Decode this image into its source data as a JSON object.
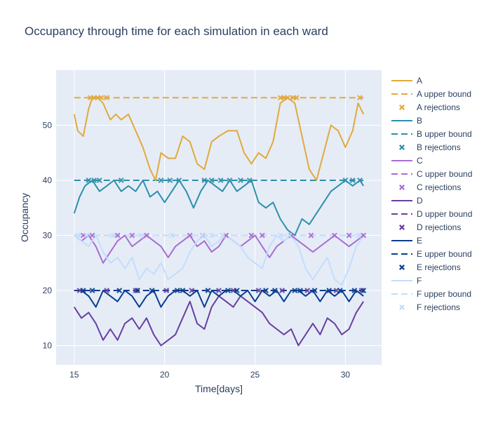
{
  "chart_data": {
    "type": "line",
    "title": "Occupancy through time for each simulation in each ward",
    "xlabel": "Time[days]",
    "ylabel": "Occupancy",
    "xlim": [
      14,
      32
    ],
    "ylim": [
      6.5,
      60
    ],
    "x_ticks": [
      15,
      20,
      25,
      30
    ],
    "y_ticks": [
      10,
      20,
      30,
      40,
      50
    ],
    "grid": true,
    "legend_position": "right",
    "colors": {
      "A": "#e2a93b",
      "B": "#2e8fab",
      "C": "#a86ed2",
      "D": "#6a3ea1",
      "E": "#0a3d8f",
      "F": "#c3ddfd"
    },
    "legend": [
      "A",
      "A upper bound",
      "A rejections",
      "B",
      "B upper bound",
      "B rejections",
      "C",
      "C upper bound",
      "C rejections",
      "D",
      "D upper bound",
      "D rejections",
      "E",
      "E upper bound",
      "E rejections",
      "F",
      "F upper bound",
      "F rejections"
    ],
    "series": [
      {
        "name": "A",
        "kind": "line",
        "color": "#e2a93b",
        "x": [
          15,
          15.2,
          15.5,
          15.8,
          16,
          16.3,
          16.6,
          17,
          17.3,
          17.6,
          18,
          18.4,
          18.8,
          19.2,
          19.5,
          19.8,
          20.2,
          20.6,
          21,
          21.4,
          21.8,
          22.2,
          22.6,
          23,
          23.5,
          24,
          24.4,
          24.8,
          25.2,
          25.6,
          26,
          26.4,
          26.8,
          27.2,
          27.6,
          28,
          28.4,
          28.8,
          29.2,
          29.6,
          30,
          30.4,
          30.7,
          31
        ],
        "y": [
          52,
          49,
          48,
          53,
          55,
          55,
          54,
          51,
          52,
          51,
          52,
          49,
          46,
          42,
          40,
          45,
          44,
          44,
          48,
          47,
          43,
          42,
          47,
          48,
          49,
          49,
          45,
          43,
          45,
          44,
          47,
          54,
          55,
          54,
          48,
          42,
          40,
          45,
          50,
          49,
          46,
          49,
          54,
          52
        ]
      },
      {
        "name": "A upper bound",
        "kind": "bound",
        "color": "#e2a93b",
        "x": [
          15,
          31
        ],
        "y": [
          55,
          55
        ]
      },
      {
        "name": "A rejections",
        "kind": "markers",
        "color": "#e2a93b",
        "x": [
          15.9,
          16.1,
          16.3,
          16.5,
          16.8,
          26.4,
          26.6,
          26.8,
          27.1,
          27.3,
          30.8
        ],
        "y": [
          55,
          55,
          55,
          55,
          55,
          55,
          55,
          55,
          55,
          55,
          55
        ]
      },
      {
        "name": "B",
        "kind": "line",
        "color": "#2e8fab",
        "x": [
          15,
          15.3,
          15.6,
          16,
          16.4,
          16.8,
          17.2,
          17.6,
          18,
          18.4,
          18.8,
          19.2,
          19.6,
          20,
          20.4,
          20.8,
          21.2,
          21.6,
          22,
          22.4,
          22.8,
          23.2,
          23.6,
          24,
          24.4,
          24.8,
          25.2,
          25.6,
          26,
          26.4,
          26.8,
          27.2,
          27.6,
          28,
          28.4,
          28.8,
          29.2,
          29.6,
          30,
          30.4,
          30.8,
          31
        ],
        "y": [
          34,
          37,
          39,
          40,
          38,
          39,
          40,
          38,
          39,
          38,
          40,
          37,
          38,
          36,
          38,
          40,
          38,
          35,
          38,
          40,
          39,
          38,
          40,
          38,
          39,
          40,
          36,
          35,
          36,
          33,
          31,
          30,
          33,
          32,
          34,
          36,
          38,
          39,
          40,
          39,
          40,
          39
        ]
      },
      {
        "name": "B upper bound",
        "kind": "bound",
        "color": "#2e8fab",
        "x": [
          15,
          31
        ],
        "y": [
          40,
          40
        ]
      },
      {
        "name": "B rejections",
        "kind": "markers",
        "color": "#2e8fab",
        "x": [
          15.8,
          16.1,
          16.4,
          17.6,
          19.8,
          20.3,
          20.8,
          22.2,
          22.6,
          23.1,
          23.6,
          24.2,
          24.7,
          30,
          30.4,
          30.8
        ],
        "y": [
          40,
          40,
          40,
          40,
          40,
          40,
          40,
          40,
          40,
          40,
          40,
          40,
          40,
          40,
          40,
          40
        ]
      },
      {
        "name": "C",
        "kind": "line",
        "color": "#a86ed2",
        "x": [
          15,
          15.4,
          15.8,
          16.2,
          16.6,
          17,
          17.4,
          17.8,
          18.2,
          18.6,
          19,
          19.4,
          19.8,
          20.2,
          20.6,
          21,
          21.4,
          21.8,
          22.2,
          22.6,
          23,
          23.4,
          23.8,
          24.2,
          24.6,
          25,
          25.4,
          25.8,
          26.2,
          26.6,
          27,
          27.4,
          27.8,
          28.2,
          28.6,
          29,
          29.4,
          29.8,
          30.2,
          30.6,
          31
        ],
        "y": [
          30,
          29,
          30,
          28,
          25,
          27,
          29,
          30,
          28,
          29,
          30,
          29,
          28,
          26,
          28,
          29,
          30,
          28,
          29,
          27,
          28,
          30,
          29,
          28,
          29,
          30,
          28,
          26,
          28,
          29,
          30,
          29,
          28,
          27,
          28,
          29,
          30,
          29,
          28,
          29,
          30
        ]
      },
      {
        "name": "C upper bound",
        "kind": "bound",
        "color": "#a86ed2",
        "x": [
          15,
          31
        ],
        "y": [
          30,
          30
        ]
      },
      {
        "name": "C rejections",
        "kind": "markers",
        "color": "#a86ed2",
        "x": [
          15.5,
          16,
          17.4,
          18.2,
          19,
          21.4,
          22.1,
          23.4,
          24.8,
          25.4,
          27,
          28.1,
          29.4,
          30.2,
          31
        ],
        "y": [
          30,
          30,
          30,
          30,
          30,
          30,
          30,
          30,
          30,
          30,
          30,
          30,
          30,
          30,
          30
        ]
      },
      {
        "name": "D",
        "kind": "line",
        "color": "#6a3ea1",
        "x": [
          15,
          15.4,
          15.8,
          16.2,
          16.6,
          17,
          17.4,
          17.8,
          18.2,
          18.6,
          19,
          19.4,
          19.8,
          20.2,
          20.6,
          21,
          21.4,
          21.8,
          22.2,
          22.6,
          23,
          23.4,
          23.8,
          24.2,
          24.6,
          25,
          25.4,
          25.8,
          26.2,
          26.6,
          27,
          27.4,
          27.8,
          28.2,
          28.6,
          29,
          29.4,
          29.8,
          30.2,
          30.6,
          31
        ],
        "y": [
          17,
          15,
          16,
          14,
          11,
          13,
          11,
          14,
          15,
          13,
          15,
          12,
          10,
          11,
          12,
          15,
          18,
          14,
          13,
          17,
          19,
          18,
          17,
          19,
          18,
          17,
          16,
          14,
          13,
          12,
          13,
          10,
          12,
          14,
          12,
          15,
          14,
          12,
          13,
          16,
          18
        ]
      },
      {
        "name": "D upper bound",
        "kind": "bound",
        "color": "#6a3ea1",
        "x": [
          15,
          31
        ],
        "y": [
          20,
          20
        ]
      },
      {
        "name": "D rejections",
        "kind": "markers",
        "color": "#6a3ea1",
        "x": [
          15.3,
          16.8,
          18.4,
          20.1,
          21.5,
          23,
          23.8,
          25.2,
          26.5,
          27.9,
          29.5,
          30.9
        ],
        "y": [
          20,
          20,
          20,
          20,
          20,
          20,
          20,
          20,
          20,
          20,
          20,
          20
        ]
      },
      {
        "name": "E",
        "kind": "line",
        "color": "#0a3d8f",
        "x": [
          15,
          15.4,
          15.8,
          16.2,
          16.6,
          17,
          17.4,
          17.8,
          18.2,
          18.6,
          19,
          19.4,
          19.8,
          20.2,
          20.6,
          21,
          21.4,
          21.8,
          22.2,
          22.6,
          23,
          23.4,
          23.8,
          24.2,
          24.6,
          25,
          25.4,
          25.8,
          26.2,
          26.6,
          27,
          27.4,
          27.8,
          28.2,
          28.6,
          29,
          29.4,
          29.8,
          30.2,
          30.6,
          31
        ],
        "y": [
          20,
          20,
          19,
          17,
          20,
          19,
          18,
          20,
          19,
          17,
          19,
          20,
          17,
          19,
          20,
          20,
          19,
          20,
          17,
          20,
          19,
          20,
          20,
          19,
          20,
          18,
          20,
          19,
          20,
          18,
          20,
          20,
          19,
          20,
          18,
          20,
          19,
          20,
          18,
          20,
          19
        ]
      },
      {
        "name": "E upper bound",
        "kind": "bound",
        "color": "#0a3d8f",
        "x": [
          15,
          31
        ],
        "y": [
          20,
          20
        ]
      },
      {
        "name": "E rejections",
        "kind": "markers",
        "color": "#0a3d8f",
        "x": [
          15.5,
          16,
          17.5,
          18.5,
          19.3,
          20.7,
          21,
          22.4,
          23.5,
          24,
          25.6,
          26.1,
          27.2,
          27.5,
          28.3,
          29.1,
          29.7,
          30.5,
          31
        ],
        "y": [
          20,
          20,
          20,
          20,
          20,
          20,
          20,
          20,
          20,
          20,
          20,
          20,
          20,
          20,
          20,
          20,
          20,
          20,
          20
        ]
      },
      {
        "name": "F",
        "kind": "line",
        "color": "#c3ddfd",
        "x": [
          15,
          15.4,
          15.8,
          16.2,
          16.6,
          17,
          17.4,
          17.8,
          18.2,
          18.6,
          19,
          19.4,
          19.8,
          20.2,
          20.6,
          21,
          21.4,
          21.8,
          22.2,
          22.6,
          23,
          23.4,
          23.8,
          24.2,
          24.6,
          25,
          25.4,
          25.8,
          26.2,
          26.6,
          27,
          27.4,
          27.8,
          28.2,
          28.6,
          29,
          29.4,
          29.8,
          30.2,
          30.6,
          31
        ],
        "y": [
          30,
          29,
          28,
          30,
          27,
          25,
          26,
          24,
          26,
          22,
          24,
          23,
          25,
          22,
          23,
          24,
          27,
          29,
          30,
          28,
          29,
          30,
          29,
          28,
          26,
          25,
          24,
          28,
          30,
          29,
          30,
          28,
          24,
          22,
          24,
          26,
          22,
          21,
          24,
          28,
          30
        ]
      },
      {
        "name": "F upper bound",
        "kind": "bound",
        "color": "#c3ddfd",
        "x": [
          15,
          31
        ],
        "y": [
          30,
          30
        ]
      },
      {
        "name": "F rejections",
        "kind": "markers",
        "color": "#c3ddfd",
        "x": [
          15.2,
          15.7,
          17.1,
          18.7,
          20.4,
          22.1,
          22.6,
          23.2,
          26.4,
          26.9,
          30.7
        ],
        "y": [
          30,
          30,
          30,
          30,
          30,
          30,
          30,
          30,
          30,
          30,
          30
        ]
      }
    ]
  }
}
